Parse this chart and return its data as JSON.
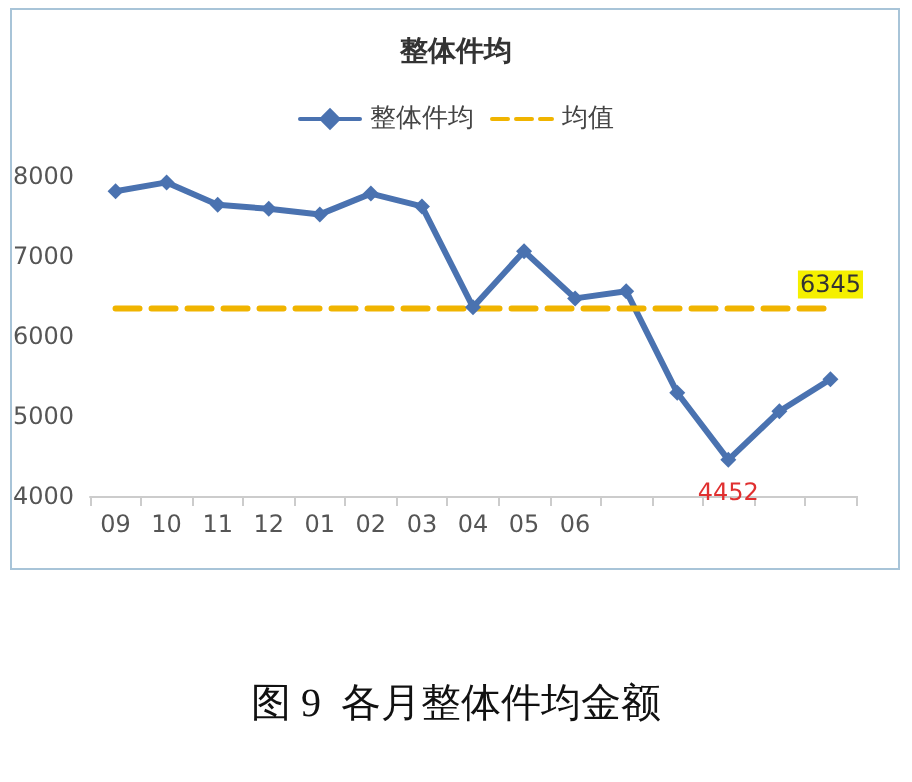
{
  "chart_data": {
    "type": "line",
    "title": "整体件均",
    "categories": [
      "09",
      "10",
      "11",
      "12",
      "01",
      "02",
      "03",
      "04",
      "05",
      "06",
      null,
      null,
      null,
      null,
      null
    ],
    "series": [
      {
        "name": "整体件均",
        "color": "#4a72b0",
        "marker": "diamond",
        "line_style": "solid",
        "values": [
          7810,
          7920,
          7640,
          7590,
          7520,
          7780,
          7620,
          6360,
          7060,
          6470,
          6560,
          5290,
          4452,
          5060,
          5460
        ],
        "value_labels": [
          null,
          null,
          null,
          null,
          null,
          null,
          null,
          null,
          null,
          null,
          null,
          null,
          "4452",
          null,
          null
        ]
      },
      {
        "name": "均值",
        "color": "#f0b400",
        "marker": "none",
        "line_style": "dashed",
        "values": [
          6345,
          6345,
          6345,
          6345,
          6345,
          6345,
          6345,
          6345,
          6345,
          6345,
          6345,
          6345,
          6345,
          6345,
          6345
        ],
        "value_labels": [
          null,
          null,
          null,
          null,
          null,
          null,
          null,
          null,
          null,
          null,
          null,
          null,
          null,
          null,
          "6345"
        ]
      }
    ],
    "ylim": [
      4000,
      8000
    ],
    "yticks": [
      4000,
      5000,
      6000,
      7000,
      8000
    ],
    "grid": false,
    "legend": "top",
    "annotations": [
      "图 9  各月整体件均金额"
    ]
  }
}
